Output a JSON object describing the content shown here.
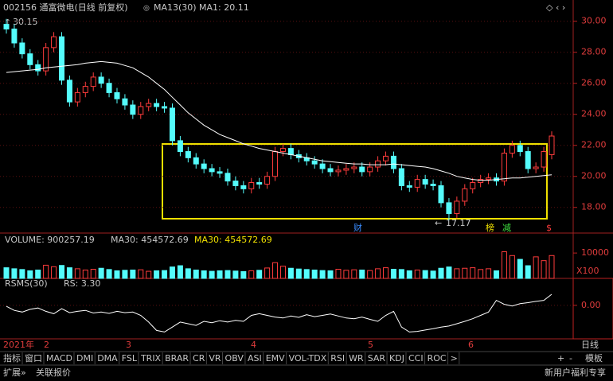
{
  "chart_data": [
    {
      "type": "candlestick",
      "title": "002156 通富微电(日线 前复权)",
      "indicator": "MA13(30)",
      "indicator_value": "MA1: 20.11",
      "up_color": "#ff3c3c",
      "down_color": "#54fcfc",
      "open": [
        29.8,
        29.5,
        28.6,
        27.9,
        27.2,
        26.8,
        28.3,
        29.0,
        26.2,
        24.8,
        25.4,
        25.8,
        26.4,
        26.0,
        25.4,
        25.0,
        24.6,
        24.0,
        24.5,
        24.7,
        24.5,
        24.4,
        22.3,
        21.6,
        21.2,
        20.8,
        20.5,
        20.3,
        20.2,
        19.7,
        19.4,
        19.2,
        19.6,
        19.5,
        20.0,
        21.6,
        21.8,
        21.4,
        21.2,
        21.0,
        20.8,
        20.5,
        20.3,
        20.4,
        20.5,
        20.6,
        20.3,
        20.6,
        21.0,
        21.3,
        20.5,
        19.4,
        19.3,
        19.8,
        19.5,
        19.4,
        18.3,
        17.6,
        18.4,
        19.2,
        19.6,
        19.8,
        19.9,
        19.7,
        21.5,
        22.0,
        21.6,
        20.5,
        20.6,
        21.4
      ],
      "close": [
        29.5,
        28.6,
        27.9,
        27.2,
        26.8,
        28.3,
        29.0,
        26.2,
        24.8,
        25.4,
        25.8,
        26.4,
        26.0,
        25.4,
        25.0,
        24.6,
        24.0,
        24.5,
        24.7,
        24.5,
        24.4,
        22.3,
        21.6,
        21.2,
        20.8,
        20.5,
        20.3,
        20.2,
        19.7,
        19.4,
        19.2,
        19.6,
        19.5,
        20.0,
        21.6,
        21.8,
        21.4,
        21.2,
        21.0,
        20.8,
        20.5,
        20.3,
        20.4,
        20.5,
        20.6,
        20.3,
        20.6,
        21.0,
        21.3,
        20.5,
        19.4,
        19.3,
        19.8,
        19.5,
        19.4,
        18.3,
        17.6,
        18.4,
        19.2,
        19.6,
        19.8,
        19.9,
        19.7,
        21.5,
        22.0,
        21.6,
        20.5,
        20.6,
        21.6,
        22.6
      ],
      "high": [
        30.15,
        29.8,
        28.9,
        28.2,
        27.5,
        28.6,
        29.3,
        29.3,
        26.5,
        25.7,
        26.1,
        26.7,
        26.7,
        26.3,
        25.7,
        25.3,
        24.9,
        24.8,
        25.0,
        25.0,
        24.8,
        24.7,
        22.6,
        21.9,
        21.5,
        21.1,
        20.8,
        20.6,
        20.5,
        20.0,
        19.7,
        19.9,
        19.9,
        20.3,
        21.9,
        22.1,
        22.1,
        21.7,
        21.5,
        21.3,
        21.1,
        20.8,
        20.7,
        20.8,
        20.9,
        20.9,
        20.9,
        21.3,
        21.6,
        21.6,
        20.8,
        19.7,
        20.1,
        20.1,
        19.8,
        19.7,
        18.6,
        18.7,
        19.5,
        19.9,
        20.1,
        20.2,
        20.2,
        21.8,
        22.3,
        22.3,
        21.9,
        20.9,
        21.9,
        22.9
      ],
      "low": [
        29.2,
        28.3,
        27.6,
        26.9,
        26.5,
        26.5,
        28.0,
        25.9,
        24.5,
        24.5,
        25.1,
        25.5,
        25.7,
        25.1,
        24.7,
        24.3,
        23.7,
        23.7,
        24.2,
        24.2,
        24.1,
        22.0,
        21.3,
        20.9,
        20.5,
        20.2,
        20.0,
        19.9,
        19.4,
        19.1,
        18.9,
        18.9,
        19.2,
        19.2,
        19.7,
        21.3,
        21.1,
        20.9,
        20.7,
        20.5,
        20.2,
        20.0,
        20.0,
        20.1,
        20.2,
        20.0,
        20.0,
        20.3,
        20.7,
        20.2,
        19.1,
        19.0,
        19.0,
        19.2,
        19.1,
        18.0,
        17.17,
        17.3,
        18.1,
        18.9,
        19.3,
        19.5,
        19.4,
        19.4,
        21.2,
        21.3,
        20.2,
        20.2,
        20.3,
        21.1
      ],
      "ma": {
        "color": "#ffffff",
        "values": [
          26.7,
          26.75,
          26.8,
          26.85,
          26.9,
          27.0,
          27.05,
          27.1,
          27.15,
          27.2,
          27.3,
          27.35,
          27.4,
          27.35,
          27.3,
          27.15,
          27.0,
          26.7,
          26.4,
          26.0,
          25.6,
          25.1,
          24.6,
          24.1,
          23.7,
          23.3,
          23.0,
          22.7,
          22.5,
          22.3,
          22.1,
          21.95,
          21.8,
          21.7,
          21.6,
          21.5,
          21.4,
          21.3,
          21.2,
          21.1,
          21.0,
          20.95,
          20.9,
          20.85,
          20.8,
          20.8,
          20.75,
          20.75,
          20.75,
          20.8,
          20.75,
          20.7,
          20.65,
          20.6,
          20.5,
          20.35,
          20.2,
          20.0,
          19.9,
          19.8,
          19.75,
          19.75,
          19.8,
          19.85,
          19.9,
          19.9,
          19.95,
          20.0,
          20.05,
          20.1
        ]
      },
      "high_label": "30.15",
      "low_label": "17.17",
      "ylim": [
        16.5,
        30.6
      ],
      "yticks": [
        {
          "value": 18,
          "label": "18.00"
        },
        {
          "value": 20,
          "label": "20.00"
        },
        {
          "value": 22,
          "label": "22.00"
        },
        {
          "value": 24,
          "label": "24.00"
        },
        {
          "value": 26,
          "label": "26.00"
        },
        {
          "value": 28,
          "label": "28.00"
        },
        {
          "value": 30,
          "label": "30.00"
        }
      ],
      "events": [
        "财",
        "榜",
        "减",
        "$"
      ]
    },
    {
      "type": "bar",
      "title": "VOLUME: 900257.19",
      "legend": [
        "MA30: 454572.69",
        "MA30: 454572.69"
      ],
      "unit_label": "X100",
      "values": [
        420000,
        380000,
        350000,
        300000,
        330000,
        520000,
        460000,
        510000,
        420000,
        380000,
        330000,
        360000,
        400000,
        350000,
        300000,
        320000,
        330000,
        340000,
        280000,
        300000,
        310000,
        450000,
        500000,
        380000,
        330000,
        300000,
        280000,
        300000,
        310000,
        290000,
        270000,
        300000,
        320000,
        410000,
        620000,
        480000,
        400000,
        370000,
        350000,
        330000,
        310000,
        300000,
        360000,
        320000,
        340000,
        330000,
        310000,
        380000,
        420000,
        360000,
        350000,
        300000,
        330000,
        310000,
        290000,
        400000,
        450000,
        380000,
        400000,
        420000,
        350000,
        380000,
        300000,
        1050000,
        900000,
        750000,
        500000,
        850000,
        700000,
        900257.19
      ],
      "ylim": [
        0,
        1160000
      ],
      "yticks": [
        {
          "value": 1000000,
          "label": "10000"
        }
      ]
    },
    {
      "type": "line",
      "title": "RSMS(30)",
      "subtitle": "RS: 3.30",
      "color": "#ffffff",
      "values": [
        -0.3,
        -1.5,
        -2.0,
        -1.2,
        -0.8,
        -1.8,
        -2.5,
        -1.0,
        -2.2,
        -1.8,
        -1.5,
        -2.3,
        -2.0,
        -2.4,
        -1.8,
        -2.2,
        -2.0,
        -3.0,
        -5.0,
        -7.5,
        -8.0,
        -6.5,
        -5.0,
        -5.5,
        -6.0,
        -4.8,
        -5.2,
        -4.6,
        -5.0,
        -4.5,
        -4.8,
        -3.0,
        -2.5,
        -3.0,
        -3.5,
        -3.8,
        -3.2,
        -3.6,
        -2.8,
        -3.4,
        -3.0,
        -2.6,
        -3.2,
        -3.8,
        -4.0,
        -3.5,
        -4.2,
        -4.8,
        -3.0,
        -1.8,
        -6.5,
        -8.0,
        -7.8,
        -7.4,
        -7.0,
        -6.5,
        -6.2,
        -5.5,
        -4.8,
        -4.0,
        -3.0,
        -2.0,
        1.5,
        0.3,
        -0.2,
        0.5,
        0.8,
        1.2,
        1.5,
        3.3
      ],
      "ylim": [
        -9.8,
        7.6
      ],
      "yticks": [
        {
          "value": 0,
          "label": "0.00"
        }
      ]
    }
  ],
  "time_axis": [
    "2021年",
    "2",
    "3",
    "4",
    "5",
    "6",
    "日线"
  ],
  "tabs": [
    "指标",
    "窗口",
    "MACD",
    "DMI",
    "DMA",
    "FSL",
    "TRIX",
    "BRAR",
    "CR",
    "VR",
    "OBV",
    "ASI",
    "EMV",
    "VOL-TDX",
    "RSI",
    "WR",
    "SAR",
    "KDJ",
    "CCI",
    "ROC",
    ">"
  ],
  "tab_controls": [
    "+",
    "-",
    "模板"
  ],
  "footer": {
    "expand": "扩展»",
    "related": "关联报价",
    "promo": "新用户福利专享"
  }
}
